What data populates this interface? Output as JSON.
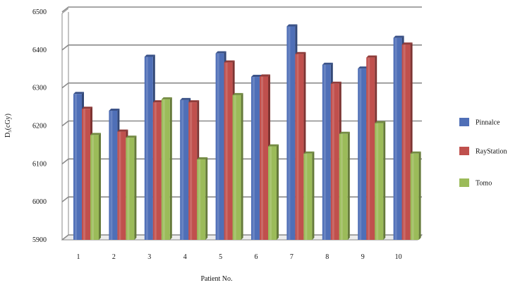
{
  "chart_data": {
    "type": "bar",
    "categories": [
      "1",
      "2",
      "3",
      "4",
      "5",
      "6",
      "7",
      "8",
      "9",
      "10"
    ],
    "series": [
      {
        "name": "Pinnalce",
        "color": "#4F6FB7",
        "values": [
          6284,
          6240,
          6382,
          6268,
          6391,
          6329,
          6462,
          6361,
          6351,
          6432
        ]
      },
      {
        "name": "RayStation",
        "color": "#C0504D",
        "values": [
          6245,
          6185,
          6262,
          6262,
          6367,
          6330,
          6389,
          6311,
          6380,
          6414
        ]
      },
      {
        "name": "Tomo",
        "color": "#9BBB59",
        "values": [
          6176,
          6169,
          6270,
          6112,
          6281,
          6146,
          6127,
          6179,
          6207,
          6127
        ]
      }
    ],
    "yticks": [
      "5900",
      "6000",
      "6100",
      "6200",
      "6300",
      "6400",
      "6500"
    ],
    "ylim": [
      5900,
      6500
    ],
    "xlabel": "Patient No.",
    "ylabel": "D₅(cGy)",
    "grid": true,
    "legend": "right",
    "style": "3d-bars"
  }
}
